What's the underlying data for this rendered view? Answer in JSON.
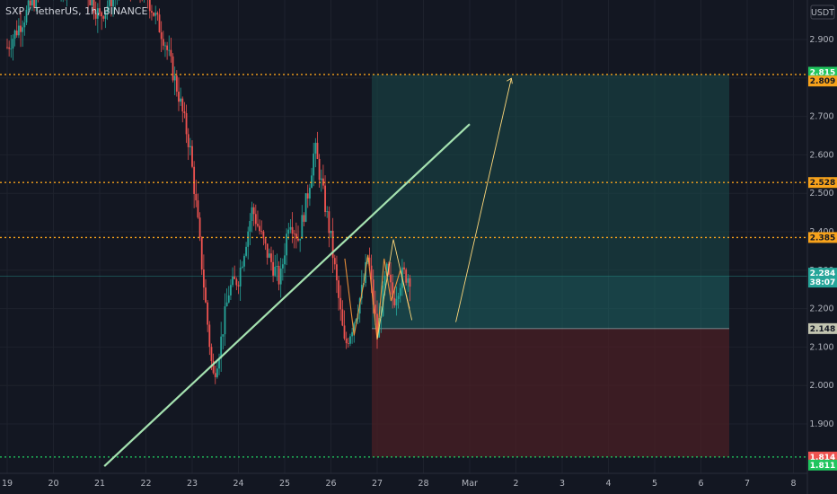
{
  "header": {
    "symbol": "SXP / TetherUS, 1h, BINANCE"
  },
  "currency": "USDT",
  "colors": {
    "background": "#131722",
    "grid": "#1e222d",
    "up": "#26a69a",
    "down": "#ef5350",
    "trendline": "#a5e2b0",
    "level_orange": "#f7a21b",
    "level_green": "#21c55e",
    "profit_zone": "#1a4a4a",
    "loss_zone": "#4a1f24",
    "path": "#ffd87a"
  },
  "chart_data": {
    "type": "candlestick",
    "x_ticks": [
      "19",
      "20",
      "21",
      "22",
      "23",
      "24",
      "25",
      "26",
      "27",
      "28",
      "Mar",
      "2",
      "3",
      "4",
      "5",
      "6",
      "7",
      "8"
    ],
    "y_ticks": [
      "2.900",
      "2.800",
      "2.700",
      "2.600",
      "2.500",
      "2.400",
      "2.300",
      "2.200",
      "2.100",
      "2.000",
      "1.900"
    ],
    "ylim": [
      1.82,
      2.95
    ],
    "price_tags": [
      {
        "label": "2.815",
        "value": 2.815,
        "color": "#21c55e",
        "text_color": "#ffffff"
      },
      {
        "label": "2.809",
        "value": 2.792,
        "color": "#f7a21b",
        "text_color": "#131722"
      },
      {
        "label": "2.528",
        "value": 2.528,
        "color": "#f7a21b",
        "text_color": "#131722"
      },
      {
        "label": "2.385",
        "value": 2.385,
        "color": "#f7a21b",
        "text_color": "#131722"
      },
      {
        "label": "2.284",
        "value": 2.29,
        "color": "#26a69a",
        "text_color": "#ffffff",
        "sub": "38:07"
      },
      {
        "label": "2.148",
        "value": 2.148,
        "color": "#c2c4b0",
        "text_color": "#131722"
      },
      {
        "label": "1.814",
        "value": 1.814,
        "color": "#ef5350",
        "text_color": "#ffffff"
      },
      {
        "label": "1.811",
        "value": 1.793,
        "color": "#21c55e",
        "text_color": "#ffffff"
      }
    ],
    "levels": [
      {
        "value": 2.809,
        "style": "orange"
      },
      {
        "value": 2.528,
        "style": "orange"
      },
      {
        "value": 2.385,
        "style": "orange"
      },
      {
        "value": 1.814,
        "style": "green"
      }
    ],
    "current_price": 2.284,
    "trade": {
      "entry": 2.148,
      "target": 2.809,
      "stop": 1.814
    },
    "trendline": [
      [
        21.1,
        1.79
      ],
      [
        29.0,
        2.68
      ]
    ],
    "projection_path": [
      [
        28.7,
        2.165
      ],
      [
        29.9,
        2.799
      ]
    ]
  }
}
